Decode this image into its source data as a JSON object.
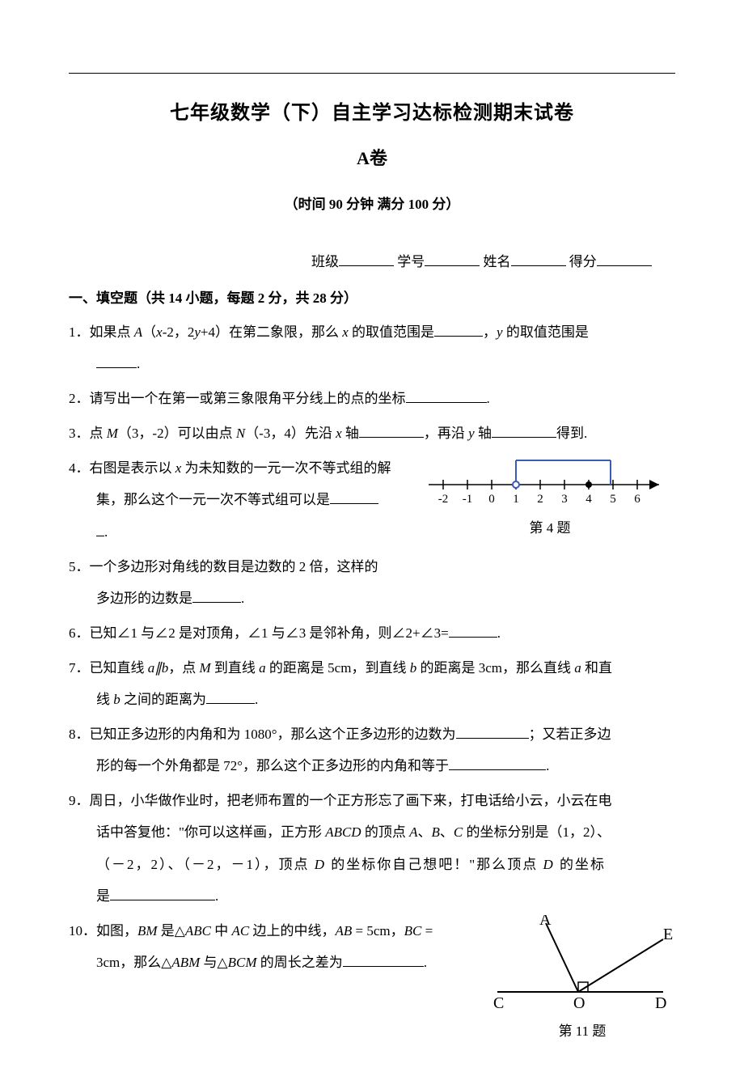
{
  "header": {
    "title": "七年级数学（下）自主学习达标检测期末试卷",
    "subtitle_prefix": "A",
    "subtitle_suffix": "卷",
    "info": "（时间 90 分钟  满分 100 分）",
    "fields": {
      "class": "班级",
      "id": "学号",
      "name": "姓名",
      "score": "得分"
    }
  },
  "section1": {
    "title": "一、填空题（共 14 小题，每题 2 分，共 28 分）"
  },
  "q1": {
    "p1": "1．如果点 ",
    "A": "A",
    "paren": "（",
    "x": "x",
    "p2": "-2，2",
    "y": "y",
    "p3": "+4）在第二象限，那么 ",
    "x2": "x",
    "p4": " 的取值范围是",
    "p5": "，",
    "y2": "y",
    "p6": " 的取值范围是",
    "p7": "."
  },
  "q2": {
    "text": "2．请写出一个在第一或第三象限角平分线上的点的坐标",
    "tail": "."
  },
  "q3": {
    "p1": "3．点 ",
    "M": "M",
    "p2": "（3，-2）可以由点 ",
    "N": "N",
    "p3": "（-3，4）先沿 ",
    "x": "x",
    "p4": " 轴",
    "p5": "，再沿 ",
    "y": "y",
    "p6": " 轴",
    "p7": "得到."
  },
  "q4": {
    "line1a": "4．右图是表示以 ",
    "x": "x",
    "line1b": " 为未知数的一元一次不等式组的解",
    "line2a": "集，那么这个一元一次不等式组可以是",
    "tail": ".",
    "caption": "第 4 题",
    "numberline": {
      "ticks": [
        "-2",
        "-1",
        "0",
        "1",
        "2",
        "3",
        "4",
        "5",
        "6"
      ],
      "open_at": 1,
      "closed_at": 4,
      "axis_color": "#000000",
      "region_color": "#3b5bb5",
      "arrow_color": "#000000"
    }
  },
  "q5": {
    "line1": "5．一个多边形对角线的数目是边数的 2 倍，这样的",
    "line2": "多边形的边数是",
    "tail": "."
  },
  "q6": {
    "text": "6．已知∠1 与∠2 是对顶角，∠1 与∠3 是邻补角，则∠2+∠3=",
    "tail": "."
  },
  "q7": {
    "p1": "7．已知直线 ",
    "a": "a",
    "par": "∥",
    "b": "b",
    "p2": "，点 ",
    "M": "M",
    "p3": " 到直线 ",
    "a2": "a",
    "p4": " 的距离是 5cm，到直线 ",
    "b2": "b",
    "p5": " 的距离是 3cm，那么直线 ",
    "a3": "a",
    "p6": " 和直",
    "line2a": "线 ",
    "b3": "b",
    "line2b": " 之间的距离为",
    "tail": "."
  },
  "q8": {
    "p1": "8．已知正多边形的内角和为 1080°，那么这个正多边形的边数为",
    "p2": "；又若正多边",
    "line2a": "形的每一个外角都是 72°，那么这个正多边形的内角和等于",
    "tail": "."
  },
  "q9": {
    "p1": "9．周日，小华做作业时，把老师布置的一个正方形忘了画下来，打电话给小云，小云在电",
    "p2a": "话中答复他：\"你可以这样画，正方形 ",
    "ABCD": "ABCD",
    "p2b": " 的顶点 ",
    "A": "A",
    "p2c": "、",
    "B": "B",
    "p2d": "、",
    "C": "C",
    "p2e": " 的坐标分别是（1，2）、",
    "p3a": "（－2，2）、（－2，－1），顶点 ",
    "D": "D",
    "p3b": " 的坐标你自己想吧！\"那么顶点 ",
    "D2": "D",
    "p3c": " 的坐标",
    "p4": "是",
    "tail": "."
  },
  "q10": {
    "p1": "10．如图，",
    "BM": "BM",
    "p2": " 是",
    "tri": "△",
    "ABC": "ABC",
    "p3": " 中 ",
    "AC": "AC",
    "p4": " 边上的中线，",
    "AB": "AB",
    "p5": " = 5cm，",
    "BC": "BC",
    "p6": " =",
    "line2a": "3cm，那么",
    "ABM": "ABM",
    "line2b": " 与",
    "BCM": "BCM",
    "line2c": " 的周长之差为",
    "tail": "."
  },
  "fig11": {
    "A": "A",
    "E": "E",
    "C": "C",
    "O": "O",
    "D": "D",
    "caption": "第 11 题",
    "line_color": "#000000"
  }
}
